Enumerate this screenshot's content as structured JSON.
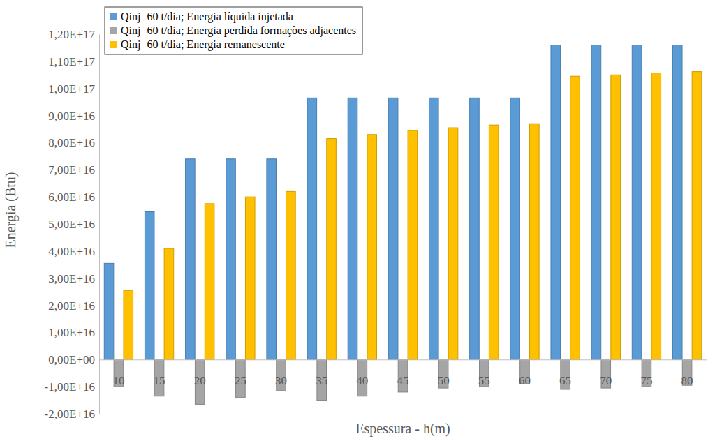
{
  "chart_data": {
    "type": "bar",
    "x_label": "Espessura - h(m)",
    "y_label": "Energia (Btu)",
    "categories": [
      "10",
      "15",
      "20",
      "25",
      "30",
      "35",
      "40",
      "45",
      "50",
      "55",
      "60",
      "65",
      "70",
      "75",
      "80"
    ],
    "series": [
      {
        "name": "Qinj=60 t/dia; Energia líquida injetada",
        "color": "#5b9bd5",
        "values": [
          3.55e+16,
          5.45e+16,
          7.4e+16,
          7.4e+16,
          7.4e+16,
          9.65e+16,
          9.65e+16,
          9.65e+16,
          9.65e+16,
          9.65e+16,
          9.65e+16,
          1.16e+17,
          1.16e+17,
          1.16e+17,
          1.16e+17
        ]
      },
      {
        "name": "Qinj=60 t/dia; Energia perdida formações adjacentes",
        "color": "#a5a5a5",
        "values": [
          -1e+16,
          -1.35e+16,
          -1.65e+16,
          -1.4e+16,
          -1.15e+16,
          -1.5e+16,
          -1.35e+16,
          -1.2e+16,
          -1.05e+16,
          -1e+16,
          -9000000000000000.0,
          -1.1e+16,
          -1.05e+16,
          -1e+16,
          -9500000000000000.0
        ]
      },
      {
        "name": "Qinj=60 t/dia; Energia remanescente",
        "color": "#ffc000",
        "values": [
          2.55e+16,
          4.1e+16,
          5.75e+16,
          6e+16,
          6.2e+16,
          8.15e+16,
          8.3e+16,
          8.45e+16,
          8.55e+16,
          8.65e+16,
          8.7e+16,
          1.045e+17,
          1.05e+17,
          1.057e+17,
          1.062e+17
        ]
      }
    ],
    "ylim": [
      -2e+16,
      1.2e+17
    ],
    "yticks": [
      {
        "value": -2e+16,
        "label": "-2,00E+16"
      },
      {
        "value": -1e+16,
        "label": "-1,00E+16"
      },
      {
        "value": 0,
        "label": "0,00E+00"
      },
      {
        "value": 1e+16,
        "label": "1,00E+16"
      },
      {
        "value": 2e+16,
        "label": "2,00E+16"
      },
      {
        "value": 3e+16,
        "label": "3,00E+16"
      },
      {
        "value": 4e+16,
        "label": "4,00E+16"
      },
      {
        "value": 5e+16,
        "label": "5,00E+16"
      },
      {
        "value": 6e+16,
        "label": "6,00E+16"
      },
      {
        "value": 7e+16,
        "label": "7,00E+16"
      },
      {
        "value": 8e+16,
        "label": "8,00E+16"
      },
      {
        "value": 9e+16,
        "label": "9,00E+16"
      },
      {
        "value": 1e+17,
        "label": "1,00E+17"
      },
      {
        "value": 1.1e+17,
        "label": "1,10E+17"
      },
      {
        "value": 1.2e+17,
        "label": "1,20E+17"
      }
    ],
    "grid": false,
    "legend": "upper left"
  }
}
